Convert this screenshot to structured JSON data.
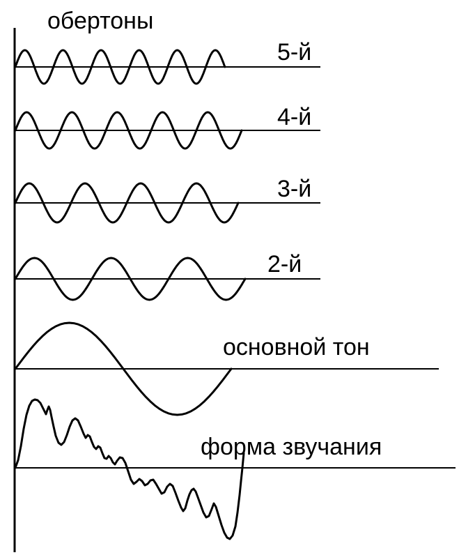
{
  "title": "обертоны",
  "rows": [
    {
      "label": "5-й",
      "harmonic": 5
    },
    {
      "label": "4-й",
      "harmonic": 4
    },
    {
      "label": "3-й",
      "harmonic": 3
    },
    {
      "label": "2-й",
      "harmonic": 2
    },
    {
      "label": "основной тон",
      "harmonic": 1
    },
    {
      "label": "форма звучания",
      "harmonic": 0
    }
  ],
  "colors": {
    "ink": "#000000",
    "background": "#ffffff"
  }
}
